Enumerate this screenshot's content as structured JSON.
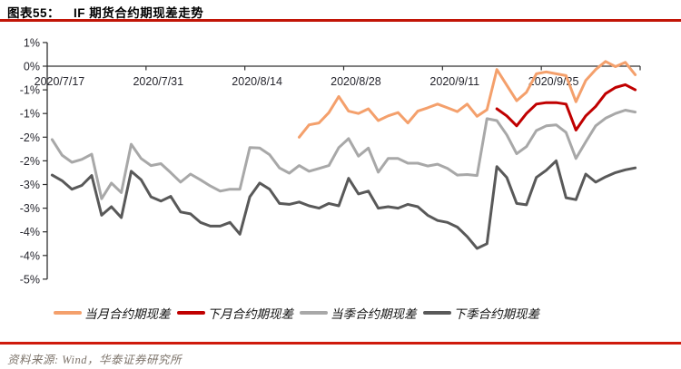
{
  "header": {
    "figure_label": "图表55：",
    "title": "IF 期货合约期现差走势"
  },
  "footer": {
    "source_label": "资料来源: Wind，华泰证券研究所"
  },
  "colors": {
    "title_rule_red": "#c21507",
    "footer_rule_red": "#cf1a0c",
    "axis_line": "#303030",
    "axis_text": "#26262e"
  },
  "chart_data": {
    "type": "line",
    "title": "IF 期货合约期现差走势",
    "legend_position": "bottom",
    "grid": false,
    "n_points": 60,
    "points_per_tick": 10,
    "x_tick_labels": [
      "2020/7/17",
      "2020/7/31",
      "2020/8/14",
      "2020/8/28",
      "2020/9/11",
      "2020/9/25"
    ],
    "y_axis": {
      "max": 0.5,
      "min": -4.5,
      "step": 0.5,
      "unit": "%",
      "labels": [
        "1%",
        "0%",
        "-1%",
        "-1%",
        "-2%",
        "-2%",
        "-3%",
        "-3%",
        "-4%",
        "-4%",
        "-5%"
      ]
    },
    "series": [
      {
        "name": "当月合约期现差",
        "key": "current-month-basis",
        "color": "#f4a06c",
        "values": [
          null,
          null,
          null,
          null,
          null,
          null,
          null,
          null,
          null,
          null,
          null,
          null,
          null,
          null,
          null,
          null,
          null,
          null,
          null,
          null,
          null,
          null,
          null,
          null,
          null,
          -1.5,
          -1.24,
          -1.2,
          -0.98,
          -0.64,
          -0.95,
          -1.0,
          -0.9,
          -1.15,
          -1.05,
          -0.98,
          -1.2,
          -0.95,
          -0.88,
          -0.8,
          -0.88,
          -0.96,
          -0.8,
          -1.06,
          -0.92,
          -0.07,
          -0.4,
          -0.73,
          -0.55,
          -0.16,
          -0.12,
          -0.16,
          -0.2,
          -0.75,
          -0.3,
          -0.07,
          0.1,
          -0.01,
          0.08,
          -0.18
        ]
      },
      {
        "name": "下月合约期现差",
        "key": "next-month-basis",
        "color": "#c00000",
        "values": [
          null,
          null,
          null,
          null,
          null,
          null,
          null,
          null,
          null,
          null,
          null,
          null,
          null,
          null,
          null,
          null,
          null,
          null,
          null,
          null,
          null,
          null,
          null,
          null,
          null,
          null,
          null,
          null,
          null,
          null,
          null,
          null,
          null,
          null,
          null,
          null,
          null,
          null,
          null,
          null,
          null,
          null,
          null,
          null,
          null,
          -0.9,
          -1.05,
          -1.26,
          -1.0,
          -0.8,
          -0.77,
          -0.77,
          -0.8,
          -1.35,
          -1.05,
          -0.85,
          -0.58,
          -0.45,
          -0.39,
          -0.5
        ]
      },
      {
        "name": "当季合约期现差",
        "key": "current-quarter-basis",
        "color": "#a8a8a8",
        "values": [
          -1.55,
          -1.88,
          -2.03,
          -1.97,
          -1.86,
          -2.8,
          -2.47,
          -2.67,
          -1.65,
          -1.95,
          -2.1,
          -2.06,
          -2.25,
          -2.45,
          -2.28,
          -2.4,
          -2.53,
          -2.64,
          -2.6,
          -2.6,
          -1.72,
          -1.73,
          -1.87,
          -2.15,
          -2.26,
          -2.1,
          -2.22,
          -2.16,
          -2.1,
          -1.72,
          -1.53,
          -1.9,
          -1.73,
          -2.24,
          -1.95,
          -1.95,
          -2.05,
          -2.05,
          -2.11,
          -2.07,
          -2.16,
          -2.3,
          -2.29,
          -2.31,
          -1.11,
          -1.15,
          -1.45,
          -1.85,
          -1.7,
          -1.36,
          -1.26,
          -1.24,
          -1.4,
          -1.95,
          -1.6,
          -1.26,
          -1.1,
          -1.0,
          -0.93,
          -0.97
        ]
      },
      {
        "name": "下季合约期现差",
        "key": "next-quarter-basis",
        "color": "#595959",
        "values": [
          -2.3,
          -2.42,
          -2.6,
          -2.52,
          -2.31,
          -3.15,
          -2.97,
          -3.2,
          -2.22,
          -2.4,
          -2.76,
          -2.85,
          -2.75,
          -3.08,
          -3.12,
          -3.3,
          -3.38,
          -3.38,
          -3.3,
          -3.55,
          -2.76,
          -2.47,
          -2.6,
          -2.9,
          -2.92,
          -2.87,
          -2.95,
          -3.0,
          -2.9,
          -2.95,
          -2.37,
          -2.7,
          -2.64,
          -3.0,
          -2.97,
          -3.0,
          -2.92,
          -2.97,
          -3.15,
          -3.26,
          -3.3,
          -3.4,
          -3.6,
          -3.85,
          -3.75,
          -2.12,
          -2.35,
          -2.9,
          -2.93,
          -2.35,
          -2.2,
          -2.0,
          -2.78,
          -2.82,
          -2.28,
          -2.45,
          -2.34,
          -2.25,
          -2.19,
          -2.15
        ]
      }
    ]
  }
}
